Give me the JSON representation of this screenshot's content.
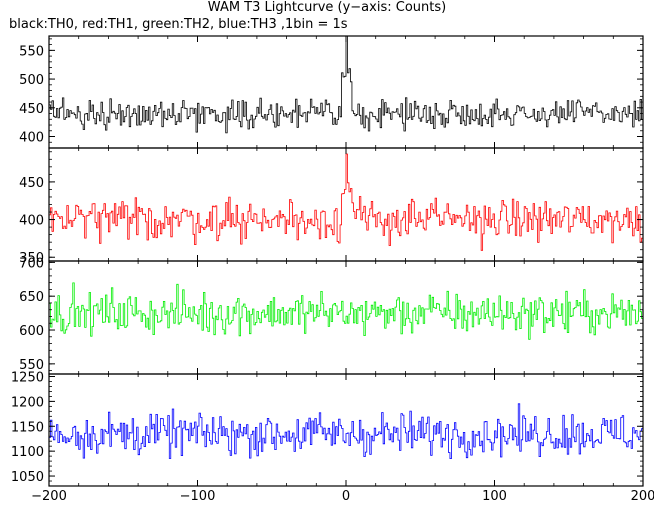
{
  "title": "WAM T3 Lightcurve (y−axis: Counts)",
  "subtitle": "black:TH0, red:TH1, green:TH2, blue:TH3 ,1bin = 1s",
  "chart_data": [
    {
      "type": "line",
      "name": "TH0",
      "color": "#000000",
      "xlim": [
        -200,
        200
      ],
      "ylim": [
        380,
        575
      ],
      "yticks": [
        400,
        450,
        500,
        550
      ],
      "mean": 440,
      "noise": 22,
      "spike": {
        "x": 0,
        "y": 575
      }
    },
    {
      "type": "line",
      "name": "TH1",
      "color": "#ff0000",
      "xlim": [
        -200,
        200
      ],
      "ylim": [
        345,
        495
      ],
      "yticks": [
        350,
        400,
        450
      ],
      "mean": 400,
      "noise": 25,
      "spike": {
        "x": 0,
        "y": 487
      }
    },
    {
      "type": "line",
      "name": "TH2",
      "color": "#00ee00",
      "xlim": [
        -200,
        200
      ],
      "ylim": [
        535,
        702
      ],
      "yticks": [
        550,
        600,
        650,
        700
      ],
      "mean": 625,
      "noise": 28,
      "spike": null
    },
    {
      "type": "line",
      "name": "TH3",
      "color": "#0000ff",
      "xlim": [
        -200,
        200
      ],
      "ylim": [
        1030,
        1255
      ],
      "yticks": [
        1050,
        1100,
        1150,
        1200,
        1250
      ],
      "mean": 1135,
      "noise": 38,
      "spike": null
    }
  ],
  "xticks": [
    -200,
    -100,
    0,
    100,
    200
  ]
}
